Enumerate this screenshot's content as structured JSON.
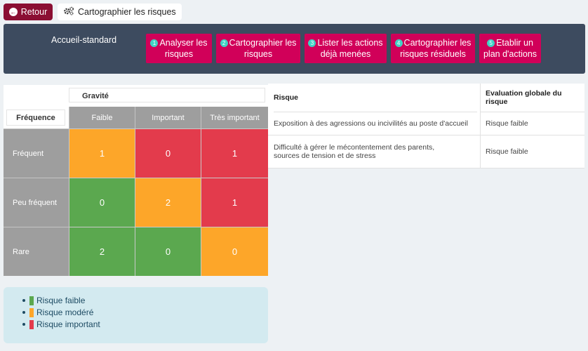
{
  "toolbar": {
    "back_label": "Retour",
    "page_title": "Cartographier les risques"
  },
  "nav": {
    "title": "Accueil-standard",
    "steps": [
      {
        "num": "1",
        "line1": "Analyser les",
        "line2": "risques"
      },
      {
        "num": "2",
        "line1": "Cartographier les",
        "line2": "risques"
      },
      {
        "num": "3",
        "line1": "Lister les actions",
        "line2": "déjà menées"
      },
      {
        "num": "4",
        "line1": "Cartographier les",
        "line2": "risques résiduels"
      },
      {
        "num": "5",
        "line1": "Etablir un",
        "line2": "plan d'actions"
      }
    ]
  },
  "matrix": {
    "gravity_label": "Gravité",
    "frequency_label": "Fréquence",
    "columns": [
      "Faible",
      "Important",
      "Très important"
    ],
    "rows": [
      {
        "label": "Fréquent",
        "values": [
          "1",
          "0",
          "1"
        ],
        "levels": [
          "moderate",
          "high",
          "high"
        ]
      },
      {
        "label": "Peu fréquent",
        "values": [
          "0",
          "2",
          "1"
        ],
        "levels": [
          "low",
          "moderate",
          "high"
        ]
      },
      {
        "label": "Rare",
        "values": [
          "2",
          "0",
          "0"
        ],
        "levels": [
          "low",
          "low",
          "moderate"
        ]
      }
    ]
  },
  "colors": {
    "low": "#5ba84f",
    "moderate": "#fda629",
    "high": "#e33b4c",
    "accent": "#d10059",
    "back": "#8b0f33",
    "panel": "#3d4b5f"
  },
  "risk_table": {
    "headers": [
      "Risque",
      "Evaluation globale du risque"
    ],
    "rows": [
      {
        "risk": "Exposition à des agressions ou incivilités au poste d'accueil",
        "eval": "Risque faible"
      },
      {
        "risk": "Difficulté à gérer le mécontentement des parents, sources de tension et de stress",
        "eval": "Risque faible"
      }
    ]
  },
  "legend": [
    {
      "label": "Risque faible",
      "level": "low"
    },
    {
      "label": "Risque modéré",
      "level": "moderate"
    },
    {
      "label": "Risque important",
      "level": "high"
    }
  ]
}
